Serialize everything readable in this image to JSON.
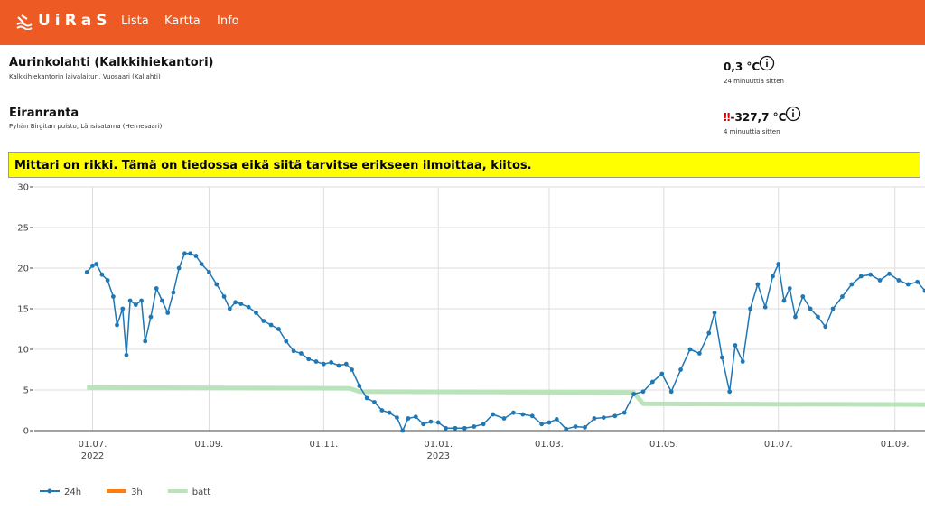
{
  "header": {
    "logo": "UiRaS",
    "nav": [
      "Lista",
      "Kartta",
      "Info"
    ]
  },
  "stations": [
    {
      "name": "Aurinkolahti (Kalkkihiekantori)",
      "location": "Kalkkihiekantorin laivalaituri, Vuosaari (Kallahti)",
      "temperature": "0,3 °C",
      "age": "24 minuuttia sitten"
    },
    {
      "name": "Eiranranta",
      "location": "Pyhän Birgitan puisto, Länsisatama (Hernesaari)",
      "alert": "‼",
      "temperature": "-327,7 °C",
      "age": "4 minuuttia sitten"
    }
  ],
  "warning": "Mittari on rikki. Tämä on tiedossa eikä siitä tarvitse erikseen ilmoittaa, kiitos.",
  "chart_data": {
    "type": "line",
    "xlim": [
      "2022-05-31",
      "2023-09-17"
    ],
    "xticks": [
      {
        "value": "2022-07-01",
        "label": "01.07.",
        "year": "2022"
      },
      {
        "value": "2022-09-01",
        "label": "01.09."
      },
      {
        "value": "2022-11-01",
        "label": "01.11."
      },
      {
        "value": "2023-01-01",
        "label": "01.01.",
        "year": "2023"
      },
      {
        "value": "2023-03-01",
        "label": "01.03."
      },
      {
        "value": "2023-05-01",
        "label": "01.05."
      },
      {
        "value": "2023-07-01",
        "label": "01.07."
      },
      {
        "value": "2023-09-01",
        "label": "01.09."
      }
    ],
    "ylim": [
      0,
      30
    ],
    "yticks": [
      0,
      5,
      10,
      15,
      20,
      25,
      30
    ],
    "grid": true,
    "series": [
      {
        "name": "24h",
        "color": "#1f77b4",
        "markers": true,
        "x": [
          "2022-06-28",
          "2022-07-01",
          "2022-07-03",
          "2022-07-06",
          "2022-07-09",
          "2022-07-12",
          "2022-07-14",
          "2022-07-17",
          "2022-07-19",
          "2022-07-21",
          "2022-07-24",
          "2022-07-27",
          "2022-07-29",
          "2022-08-01",
          "2022-08-04",
          "2022-08-07",
          "2022-08-10",
          "2022-08-13",
          "2022-08-16",
          "2022-08-19",
          "2022-08-22",
          "2022-08-25",
          "2022-08-28",
          "2022-09-01",
          "2022-09-05",
          "2022-09-09",
          "2022-09-12",
          "2022-09-15",
          "2022-09-18",
          "2022-09-22",
          "2022-09-26",
          "2022-09-30",
          "2022-10-04",
          "2022-10-08",
          "2022-10-12",
          "2022-10-16",
          "2022-10-20",
          "2022-10-24",
          "2022-10-28",
          "2022-11-01",
          "2022-11-05",
          "2022-11-09",
          "2022-11-13",
          "2022-11-16",
          "2022-11-20",
          "2022-11-24",
          "2022-11-28",
          "2022-12-02",
          "2022-12-06",
          "2022-12-10",
          "2022-12-13",
          "2022-12-16",
          "2022-12-20",
          "2022-12-24",
          "2022-12-28",
          "2023-01-01",
          "2023-01-05",
          "2023-01-10",
          "2023-01-15",
          "2023-01-20",
          "2023-01-25",
          "2023-01-30",
          "2023-02-05",
          "2023-02-10",
          "2023-02-15",
          "2023-02-20",
          "2023-02-25",
          "2023-03-01",
          "2023-03-05",
          "2023-03-10",
          "2023-03-15",
          "2023-03-20",
          "2023-03-25",
          "2023-03-30",
          "2023-04-05",
          "2023-04-10",
          "2023-04-15",
          "2023-04-20",
          "2023-04-25",
          "2023-04-30",
          "2023-05-05",
          "2023-05-10",
          "2023-05-15",
          "2023-05-20",
          "2023-05-25",
          "2023-05-28",
          "2023-06-01",
          "2023-06-05",
          "2023-06-08",
          "2023-06-12",
          "2023-06-16",
          "2023-06-20",
          "2023-06-24",
          "2023-06-28",
          "2023-07-01",
          "2023-07-04",
          "2023-07-07",
          "2023-07-10",
          "2023-07-14",
          "2023-07-18",
          "2023-07-22",
          "2023-07-26",
          "2023-07-30",
          "2023-08-04",
          "2023-08-09",
          "2023-08-14",
          "2023-08-19",
          "2023-08-24",
          "2023-08-29",
          "2023-09-03",
          "2023-09-08",
          "2023-09-13",
          "2023-09-17"
        ],
        "values": [
          19.5,
          20.3,
          20.5,
          19.2,
          18.5,
          16.5,
          13,
          15,
          9.3,
          16,
          15.5,
          16,
          11,
          14,
          17.5,
          16,
          14.5,
          17,
          20,
          21.8,
          21.8,
          21.5,
          20.5,
          19.5,
          18,
          16.5,
          15,
          15.8,
          15.6,
          15.2,
          14.5,
          13.5,
          13,
          12.5,
          11,
          9.8,
          9.5,
          8.8,
          8.5,
          8.2,
          8.4,
          8,
          8.2,
          7.5,
          5.5,
          4,
          3.5,
          2.5,
          2.2,
          1.6,
          0,
          1.5,
          1.7,
          0.8,
          1.1,
          1,
          0.3,
          0.3,
          0.3,
          0.5,
          0.8,
          2,
          1.5,
          2.2,
          2,
          1.8,
          0.8,
          1,
          1.4,
          0.2,
          0.5,
          0.4,
          1.5,
          1.6,
          1.8,
          2.2,
          4.5,
          4.8,
          6,
          7,
          4.8,
          7.5,
          10,
          9.5,
          12,
          14.5,
          9,
          4.8,
          10.5,
          8.5,
          15,
          18,
          15.2,
          19,
          20.5,
          16,
          17.5,
          14,
          16.5,
          15,
          14,
          12.8,
          15,
          16.5,
          18,
          19,
          19.2,
          18.5,
          19.3,
          18.5,
          18,
          18.3,
          17.2
        ]
      },
      {
        "name": "3h",
        "color": "#ff7f0e",
        "markers": false,
        "x": [],
        "values": []
      },
      {
        "name": "batt",
        "color": "#b9e3b9",
        "markers": false,
        "x": [
          "2022-06-28",
          "2022-11-15",
          "2022-11-20",
          "2023-04-15",
          "2023-04-20",
          "2023-09-17"
        ],
        "values": [
          5.3,
          5.2,
          4.8,
          4.7,
          3.3,
          3.2
        ]
      }
    ]
  }
}
